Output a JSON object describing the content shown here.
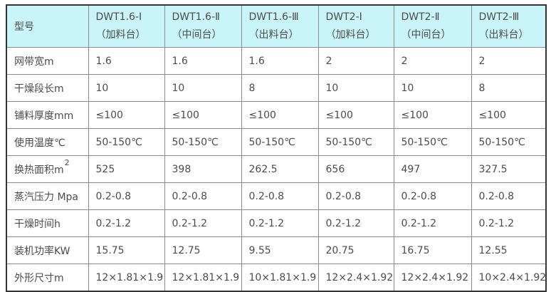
{
  "colors": {
    "header_bg": "#c9f5f8",
    "border_inner": "#8c8c8c",
    "border_outer": "#333333",
    "text": "#4c4c4c",
    "page_bg": "#ffffff"
  },
  "table": {
    "corner_header": "型号",
    "columns": [
      {
        "model": "DWT1.6-Ⅰ",
        "station": "（加料台）"
      },
      {
        "model": "DWT1.6-Ⅱ",
        "station": "（中间台）"
      },
      {
        "model": "DWT1.6-Ⅲ",
        "station": "（出料台）"
      },
      {
        "model": "DWT2-Ⅰ",
        "station": "（加料台）"
      },
      {
        "model": "DWT2-Ⅱ",
        "station": "（中间台）"
      },
      {
        "model": "DWT2-Ⅲ",
        "station": "（出料台）"
      }
    ],
    "rows": [
      {
        "label": "网带宽m",
        "label_sup": "",
        "values": [
          "1.6",
          "1.6",
          "1.6",
          "2",
          "2",
          "2"
        ]
      },
      {
        "label": "干燥段长m",
        "label_sup": "",
        "values": [
          "10",
          "10",
          "8",
          "10",
          "10",
          "8"
        ]
      },
      {
        "label": "铺料厚度mm",
        "label_sup": "",
        "values": [
          "≤100",
          "≤100",
          "≤100",
          "≤100",
          "≤100",
          "≤100"
        ]
      },
      {
        "label": "使用温度℃",
        "label_sup": "",
        "values": [
          "50-150℃",
          "50-150℃",
          "50-150℃",
          "50-150℃",
          "50-150℃",
          "50-150℃"
        ]
      },
      {
        "label": "换热面积m",
        "label_sup": "2",
        "values": [
          "525",
          "398",
          "262.5",
          "656",
          "497",
          "327.5"
        ]
      },
      {
        "label": "蒸汽压力 Mpa",
        "label_sup": "",
        "values": [
          "0.2-0.8",
          "0.2-0.8",
          "0.2-0.8",
          "0.2-0.8",
          "0.2-0.8",
          "0.2-0.8"
        ]
      },
      {
        "label": "干燥时间h",
        "label_sup": "",
        "values": [
          "0.2-1.2",
          "0.2-1.2",
          "0.2-1.2",
          "0.2-1.2",
          "0.2-1.2",
          "0.2-1.2"
        ]
      },
      {
        "label": "装机功率KW",
        "label_sup": "",
        "values": [
          "15.75",
          "12.75",
          "9.55",
          "20.75",
          "16.75",
          "12.55"
        ]
      },
      {
        "label": "外形尺寸m",
        "label_sup": "",
        "values": [
          "12×1.81×1.9",
          "12×1.81×1.9",
          "10×1.81×1.9",
          "12×2.4×1.92",
          "12×2.4×1.92",
          "10×2.4×1.92"
        ]
      }
    ]
  }
}
